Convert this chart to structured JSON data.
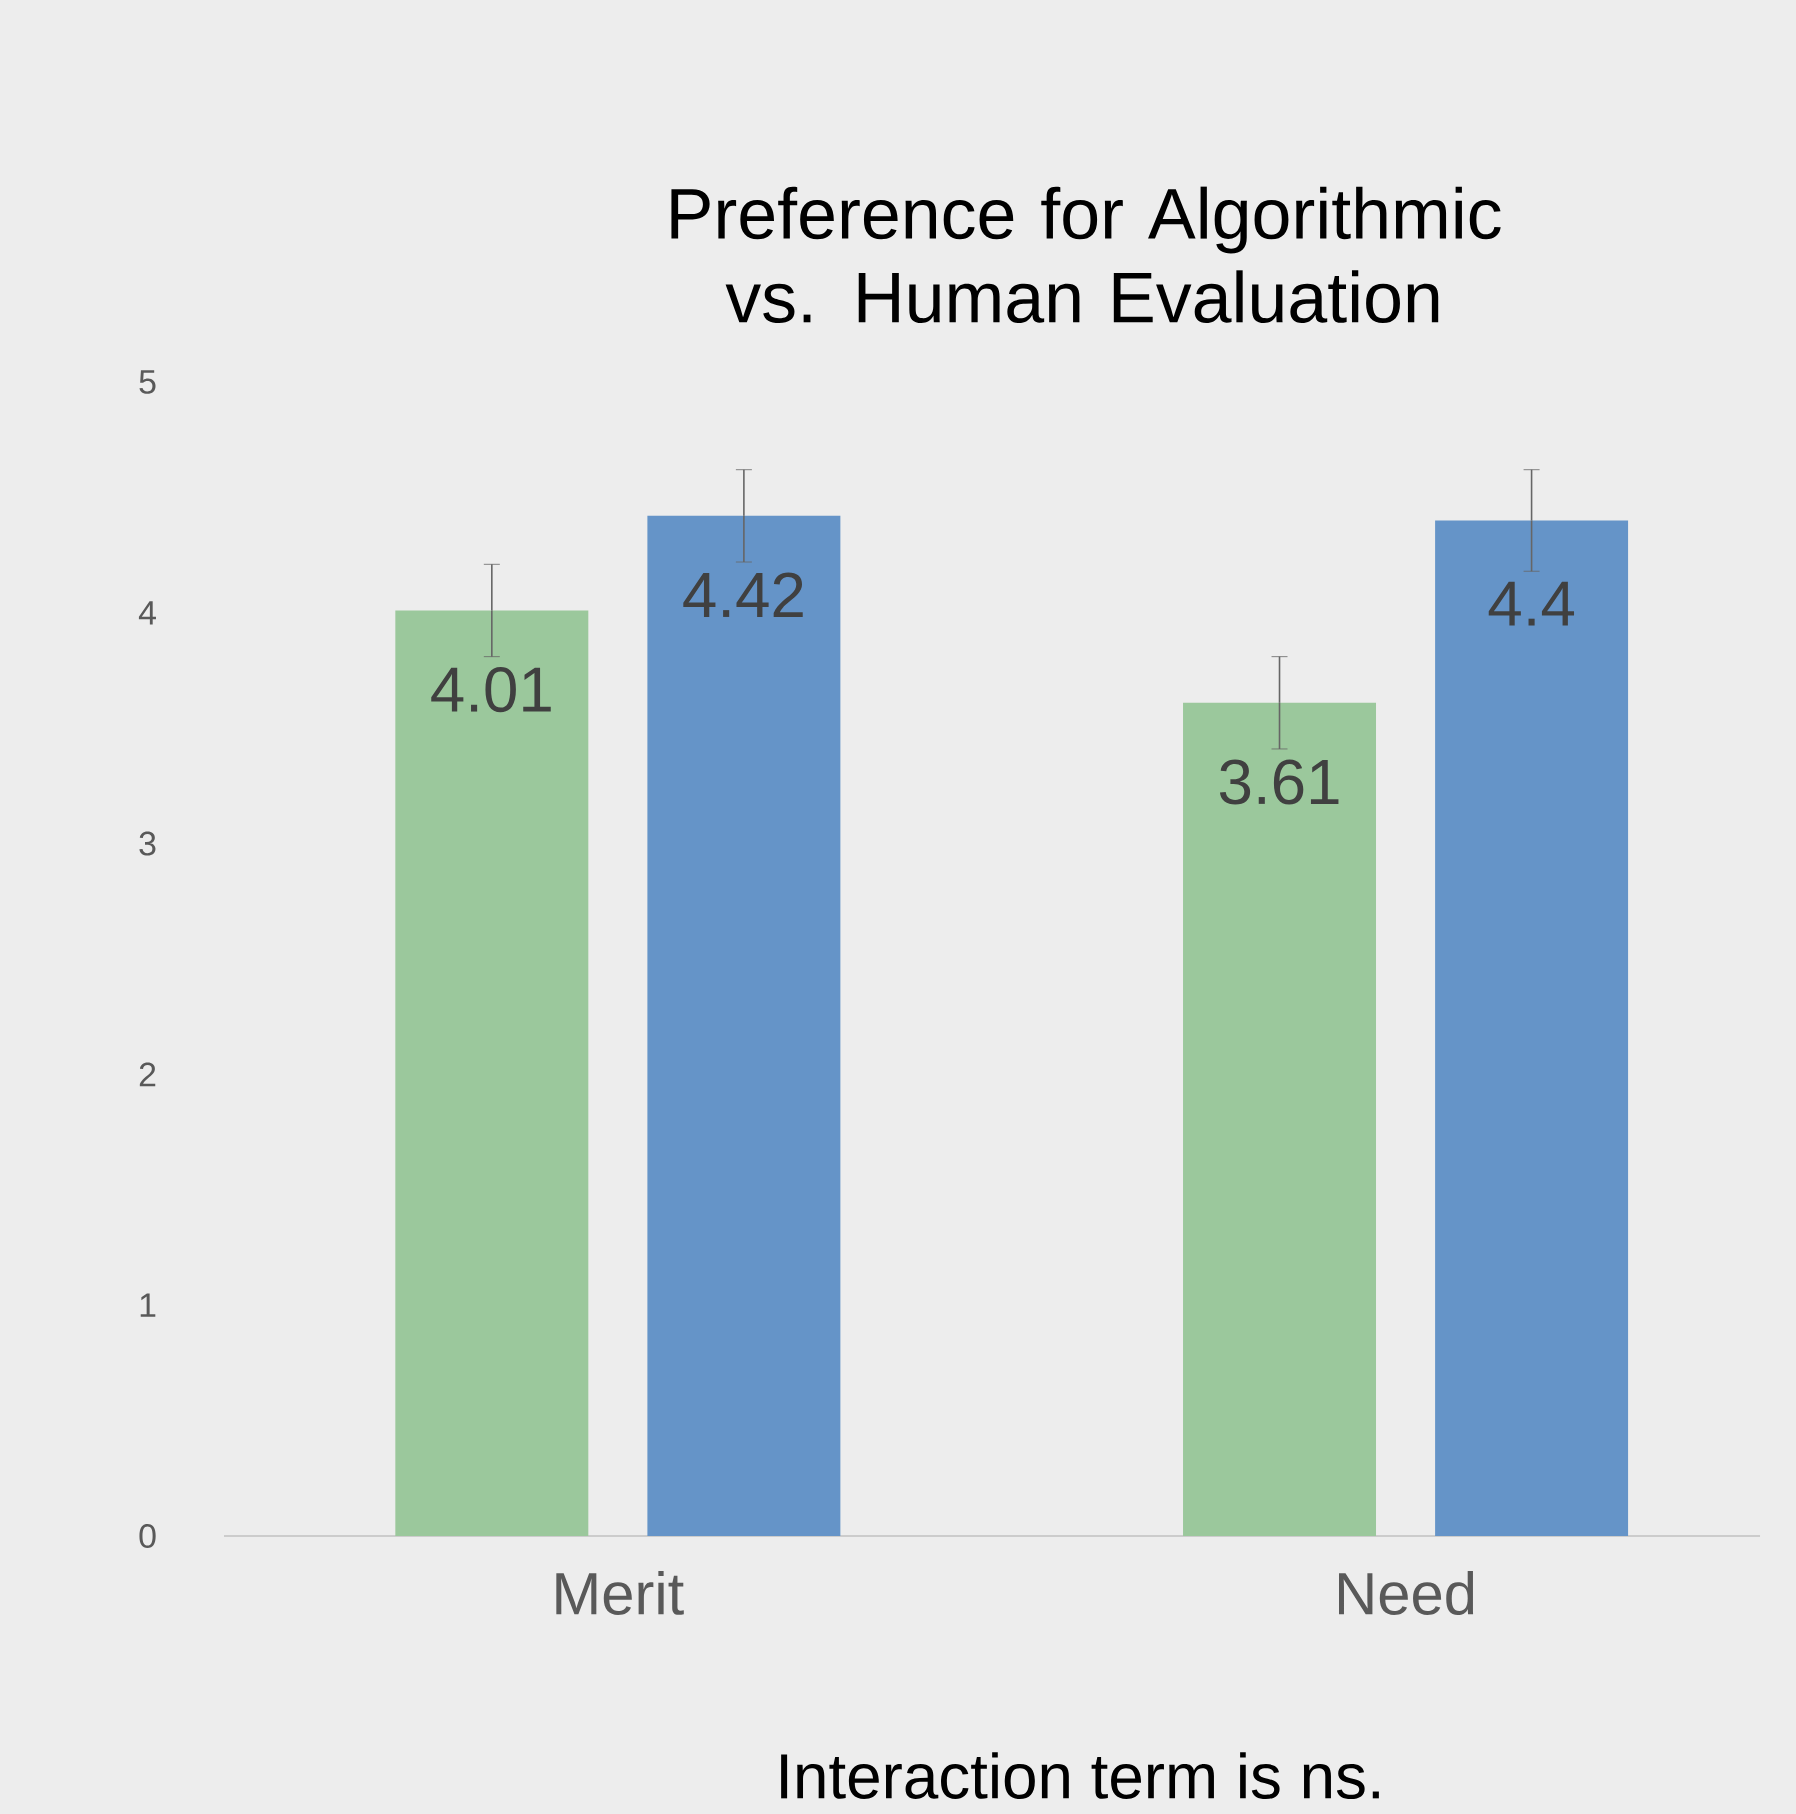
{
  "chart_data": {
    "type": "bar",
    "title": "Preference for Algorithmic vs. Human Evaluation",
    "categories": [
      "Merit",
      "Need"
    ],
    "series": [
      {
        "color": "#9bc89c",
        "values": [
          4.01,
          3.61
        ],
        "errors": [
          0.2,
          0.2
        ],
        "value_labels": [
          "4.01",
          "3.61"
        ]
      },
      {
        "color": "#6594c8",
        "values": [
          4.42,
          4.4
        ],
        "errors": [
          0.2,
          0.22
        ],
        "value_labels": [
          "4.42",
          "4.4"
        ]
      }
    ],
    "ylim": [
      0,
      5
    ],
    "yticks": [
      0,
      1,
      2,
      3,
      4,
      5
    ],
    "grid": false,
    "annotations": [
      "Interaction term is ns."
    ]
  }
}
